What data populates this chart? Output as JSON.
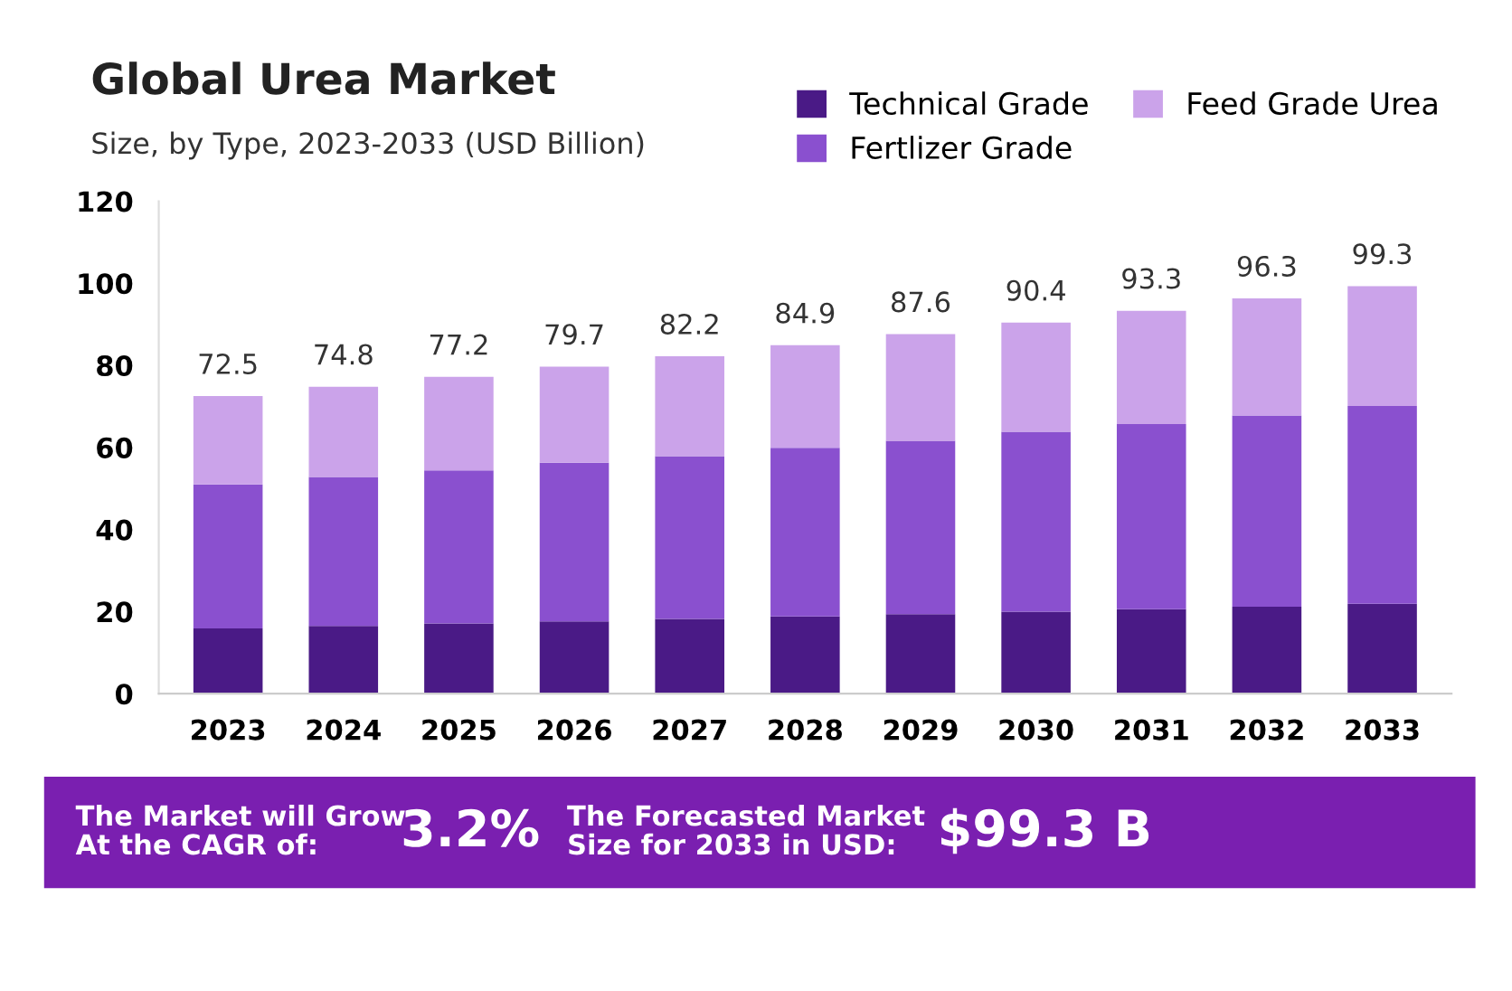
{
  "chart_data": {
    "type": "bar",
    "title": "Global Urea Market",
    "subtitle": "Size, by Type, 2023-2033 (USD Billion)",
    "categories": [
      "2023",
      "2024",
      "2025",
      "2026",
      "2027",
      "2028",
      "2029",
      "2030",
      "2031",
      "2032",
      "2033"
    ],
    "stacked": true,
    "series": [
      {
        "name": "Technical Grade",
        "color": "#4a1a86",
        "values": [
          15.9,
          16.5,
          17.1,
          17.6,
          18.2,
          18.8,
          19.4,
          20.0,
          20.6,
          21.2,
          21.9
        ]
      },
      {
        "name": "Fertlizer Grade",
        "color": "#8a50cf",
        "values": [
          35.1,
          36.3,
          37.3,
          38.7,
          39.7,
          41.1,
          42.2,
          43.8,
          45.1,
          46.6,
          48.2
        ]
      },
      {
        "name": "Feed Grade Urea",
        "color": "#cba3ea",
        "values": [
          21.5,
          22.0,
          22.8,
          23.4,
          24.3,
          25.0,
          26.0,
          26.6,
          27.6,
          28.5,
          29.2
        ]
      }
    ],
    "totals": [
      "72.5",
      "74.8",
      "77.2",
      "79.7",
      "82.2",
      "84.9",
      "87.6",
      "90.4",
      "93.3",
      "96.3",
      "99.3"
    ],
    "ylim": [
      0,
      120
    ],
    "yticks": [
      0,
      20,
      40,
      60,
      80,
      100,
      120
    ],
    "grid": false,
    "legend": "top right",
    "annotations": [
      "The Market will Grow\nAt the CAGR of:",
      "3.2%",
      "The Forecasted Market\nSize for 2033 in USD:",
      "$99.3 B"
    ]
  }
}
